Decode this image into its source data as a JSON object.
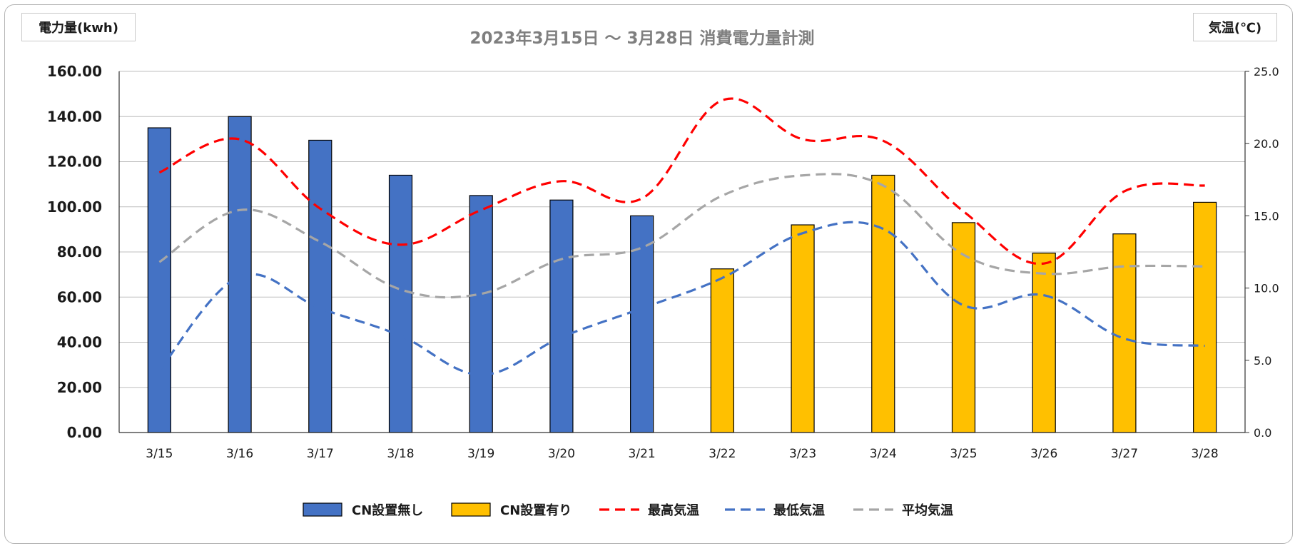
{
  "chart_data": {
    "type": "bar",
    "title": "2023年3月15日 ～ 3月28日 消費電力量計測",
    "ylabel": "電力量(kwh)",
    "y2label": "気温(℃)",
    "categories": [
      "3/15",
      "3/16",
      "3/17",
      "3/18",
      "3/19",
      "3/20",
      "3/21",
      "3/22",
      "3/23",
      "3/24",
      "3/25",
      "3/26",
      "3/27",
      "3/28"
    ],
    "ylim": [
      0,
      160
    ],
    "y2lim": [
      0,
      25
    ],
    "yticks": [
      "0.00",
      "20.00",
      "40.00",
      "60.00",
      "80.00",
      "100.00",
      "120.00",
      "140.00",
      "160.00"
    ],
    "y2ticks": [
      "0.0",
      "5.0",
      "10.0",
      "15.0",
      "20.0",
      "25.0"
    ],
    "grid": true,
    "legend_position": "bottom",
    "bar_series": [
      {
        "name": "CN設置無し",
        "color": "#4472c4",
        "values": [
          135,
          140,
          129.5,
          114,
          105,
          103,
          96,
          null,
          null,
          null,
          null,
          null,
          null,
          null
        ]
      },
      {
        "name": "CN設置有り",
        "color": "#ffc000",
        "values": [
          null,
          null,
          null,
          null,
          null,
          null,
          null,
          72.5,
          92,
          114,
          93,
          79.5,
          88,
          102
        ]
      }
    ],
    "line_series": [
      {
        "name": "最高気温",
        "color": "#ff0000",
        "axis": "right",
        "values": [
          18.0,
          20.3,
          15.5,
          13.0,
          15.4,
          17.4,
          16.2,
          23.0,
          20.3,
          20.2,
          15.3,
          11.7,
          16.7,
          17.1
        ]
      },
      {
        "name": "最低気温",
        "color": "#4472c4",
        "axis": "right",
        "values": [
          4.3,
          10.8,
          8.6,
          6.7,
          4.0,
          6.6,
          8.6,
          10.7,
          13.8,
          14.1,
          8.8,
          9.5,
          6.5,
          6.0
        ]
      },
      {
        "name": "平均気温",
        "color": "#a6a6a6",
        "axis": "right",
        "values": [
          11.8,
          15.4,
          13.2,
          9.9,
          9.6,
          12.0,
          12.8,
          16.4,
          17.8,
          17.1,
          12.3,
          11.0,
          11.5,
          11.5
        ]
      }
    ]
  }
}
